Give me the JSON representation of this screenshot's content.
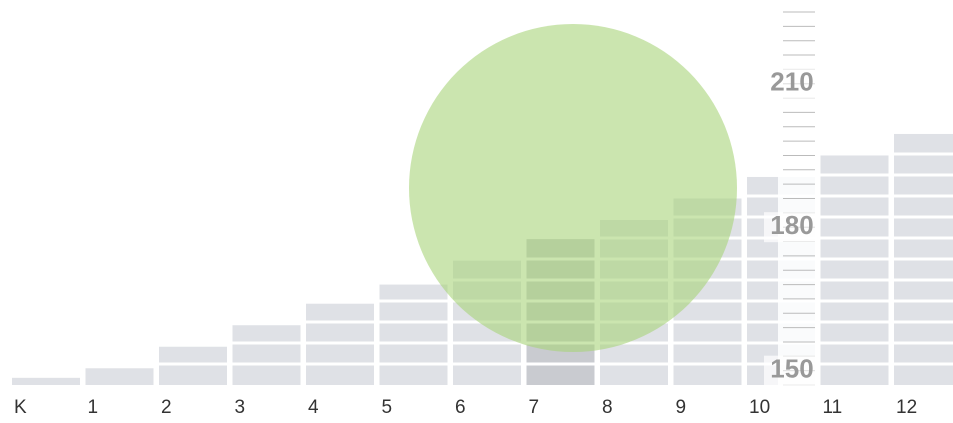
{
  "chart_data": {
    "type": "bar",
    "categories": [
      "K",
      "1",
      "2",
      "3",
      "4",
      "5",
      "6",
      "7",
      "8",
      "9",
      "10",
      "11",
      "12"
    ],
    "values": [
      148.5,
      150.5,
      155,
      159.5,
      164,
      168,
      173,
      177.5,
      181.5,
      186,
      190.5,
      195,
      199.5
    ],
    "color": "#dfe1e6",
    "ylim": [
      147,
      225
    ],
    "yticks": [
      150,
      180,
      210
    ],
    "minor_yticks": [
      147,
      150,
      153,
      156,
      159,
      162,
      165,
      168,
      171,
      174,
      177,
      180,
      183,
      186,
      189,
      192,
      195,
      198,
      201,
      204,
      207,
      210,
      213,
      216,
      219,
      222,
      225
    ]
  }
}
